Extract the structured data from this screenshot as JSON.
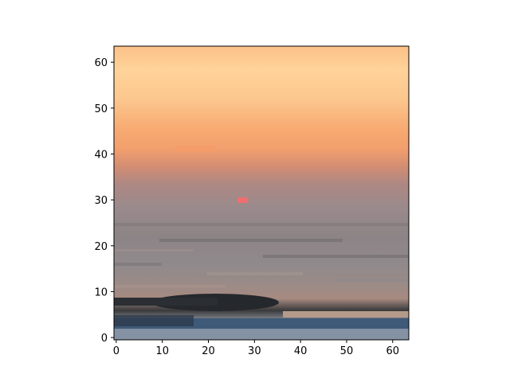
{
  "image": {
    "subject": "pixelated sunset over the ocean",
    "grid_size": [
      64,
      64
    ],
    "colors": {
      "sky_top": "#ffcc8a",
      "sky_mid": "#f6a86e",
      "horizon_haze": "#b88481",
      "sea": "#8e8a8c",
      "sun": "#f07070",
      "dark_wave": "#2a2d30",
      "blue_band": "#3b5a7a"
    }
  },
  "axes": {
    "x_ticks": [
      "0",
      "10",
      "20",
      "30",
      "40",
      "50",
      "60"
    ],
    "y_ticks": [
      "0",
      "10",
      "20",
      "30",
      "40",
      "50",
      "60"
    ],
    "xlim": [
      -0.5,
      63.5
    ],
    "ylim": [
      63.5,
      -0.5
    ]
  }
}
